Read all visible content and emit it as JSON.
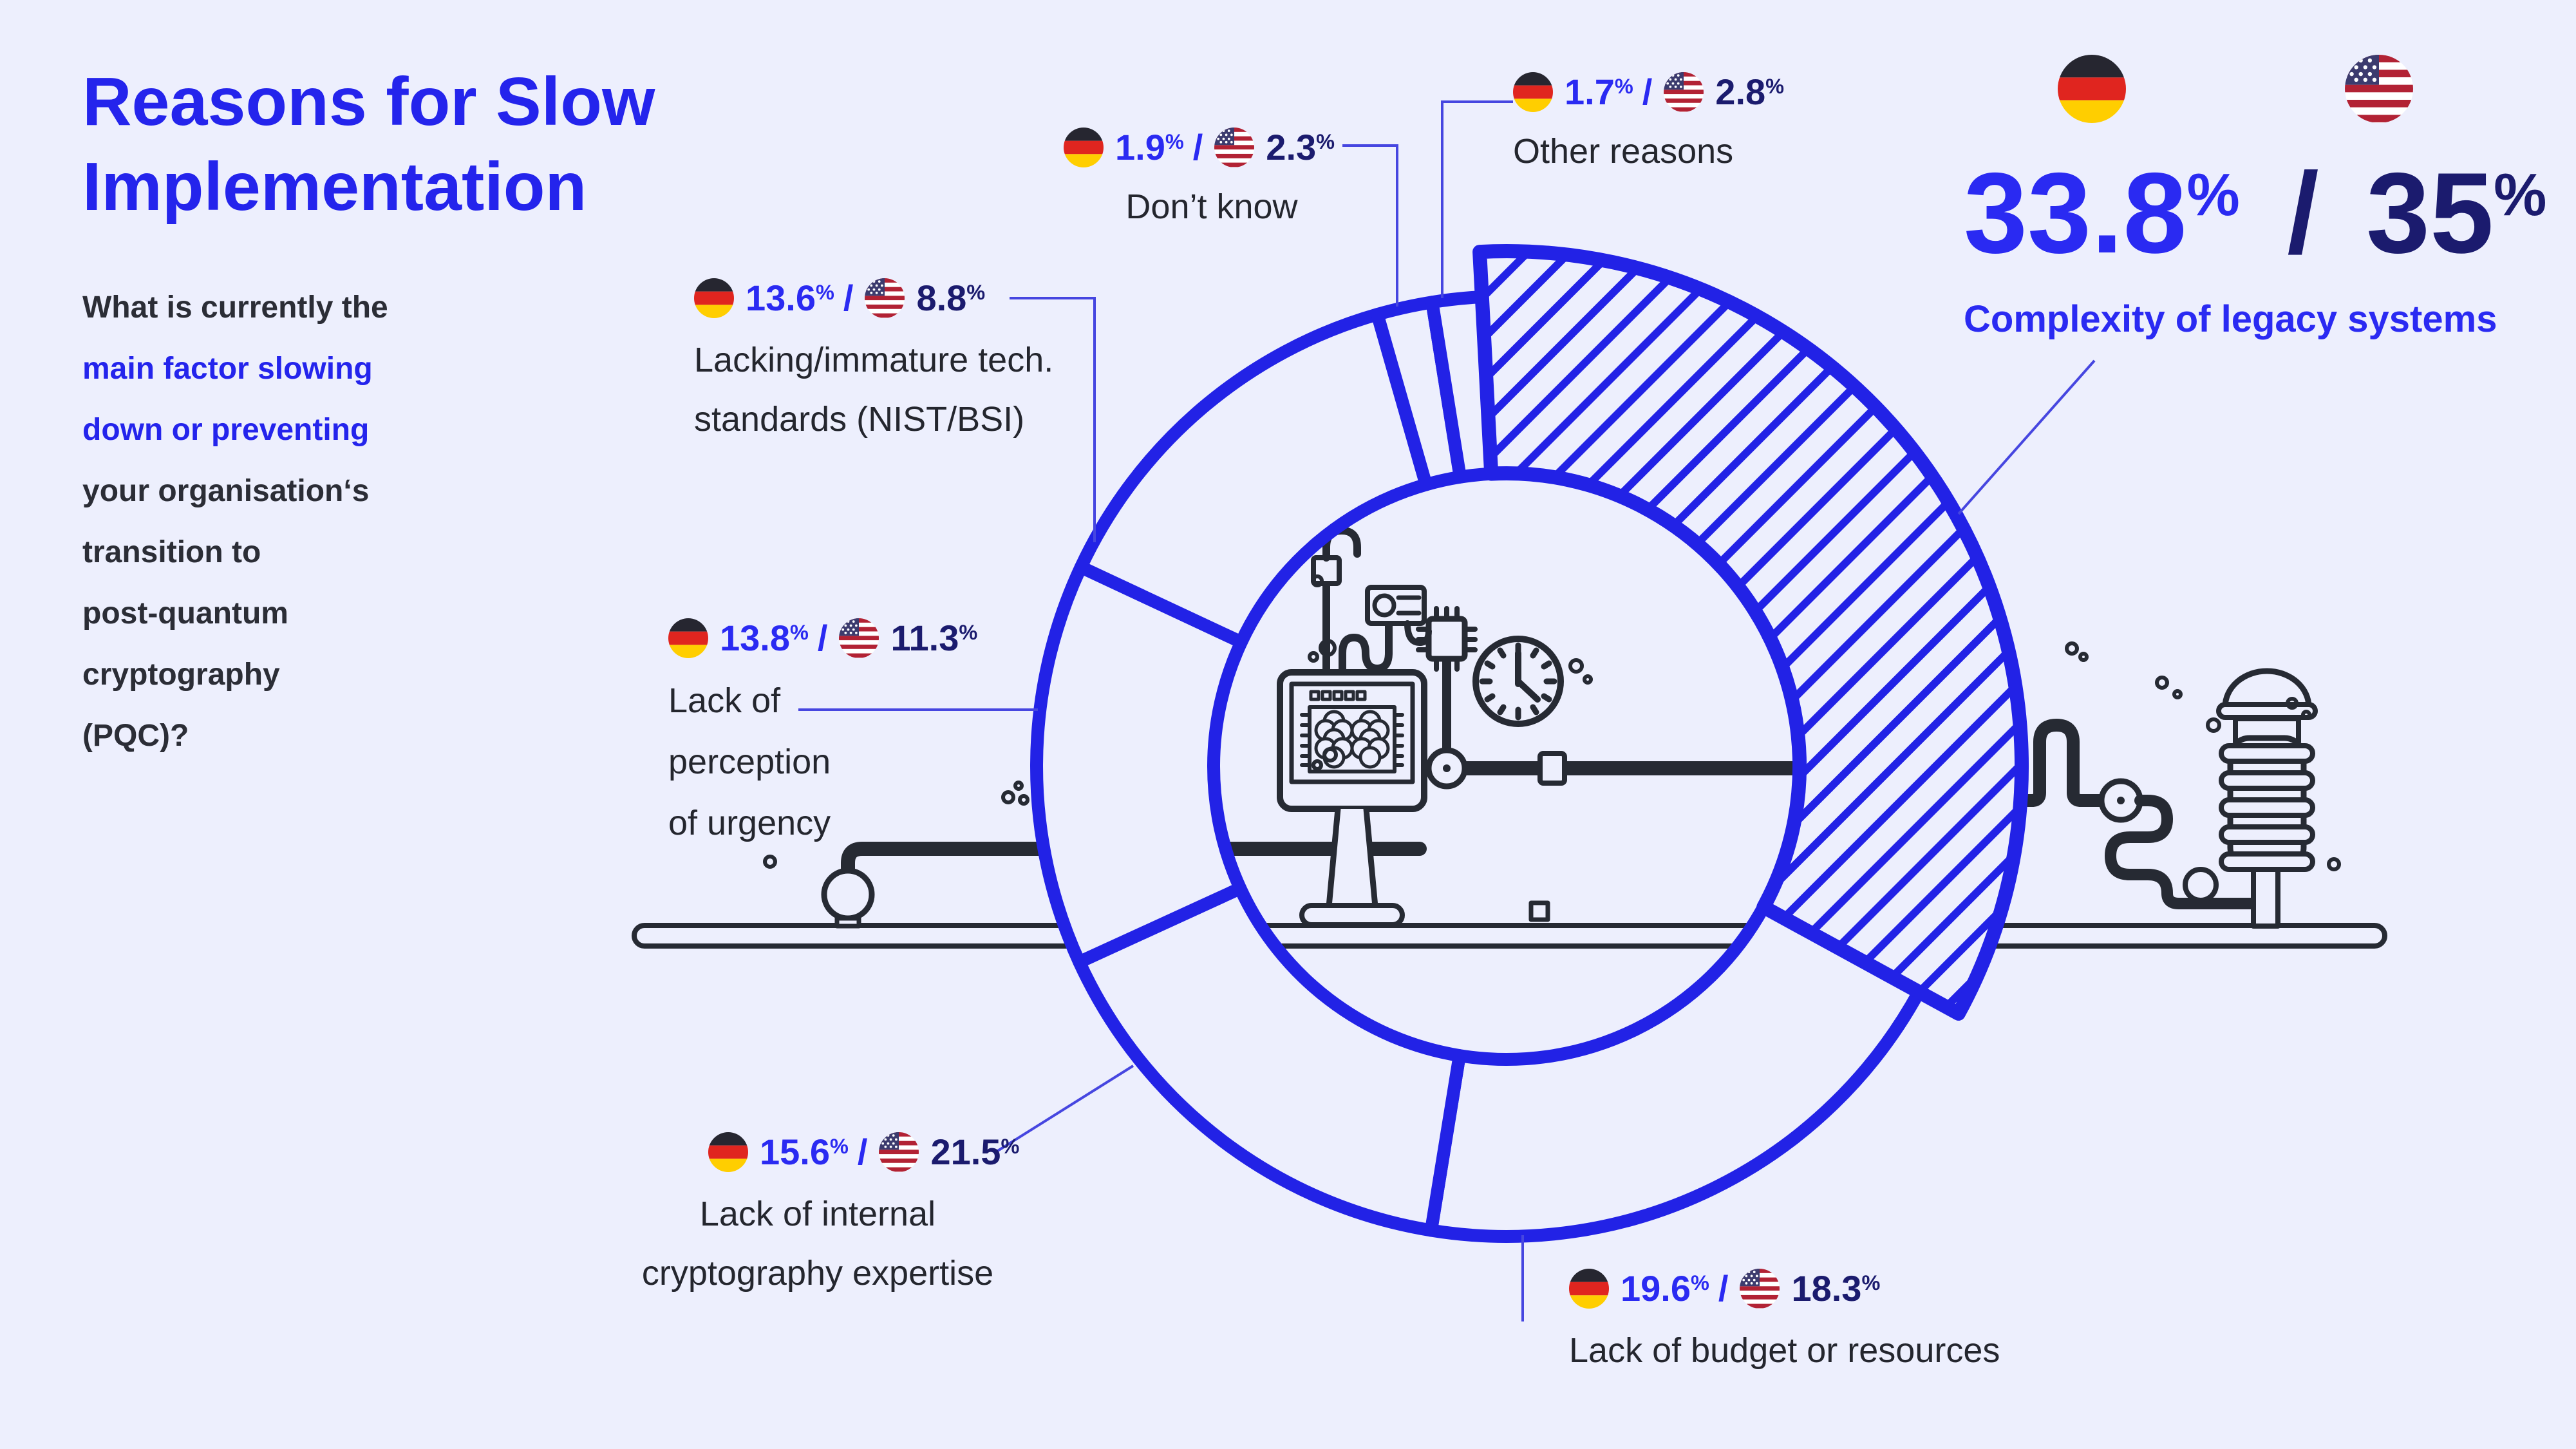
{
  "title": {
    "line1": "Reasons for Slow",
    "line2": "Implementation"
  },
  "question": {
    "lines": [
      "What is currently the",
      "main factor slowing",
      "down or preventing",
      "your organisation‘s",
      "transition to",
      "post-quantum",
      "cryptography",
      "(PQC)?"
    ]
  },
  "separator": "/",
  "unit": "%",
  "colors": {
    "accent_blue": "#2222e6",
    "bright_blue": "#2a2af2",
    "navy": "#1b1b6e",
    "background": "#edeffd",
    "ink": "#262a33"
  },
  "flags": {
    "de": "Germany",
    "us": "USA"
  },
  "labels": {
    "complexity": {
      "de": "33.8",
      "us": "35",
      "name": "Complexity of legacy systems"
    },
    "budget": {
      "de": "19.6",
      "us": "18.3",
      "name": "Lack of budget or resources"
    },
    "expertise": {
      "de": "15.6",
      "us": "21.5",
      "name_lines": [
        "Lack of internal",
        "cryptography expertise"
      ]
    },
    "urgency": {
      "de": "13.8",
      "us": "11.3",
      "name_lines": [
        "Lack of",
        "perception",
        "of urgency"
      ]
    },
    "tech": {
      "de": "13.6",
      "us": "8.8",
      "name_lines": [
        "Lacking/immature tech.",
        "standards (NIST/BSI)"
      ]
    },
    "dontknow": {
      "de": "1.9",
      "us": "2.3",
      "name": "Don’t know"
    },
    "other": {
      "de": "1.7",
      "us": "2.8",
      "name": "Other reasons"
    }
  },
  "chart_data": {
    "type": "donut",
    "title": "Reasons for Slow Implementation",
    "unit": "%",
    "direction": "clockwise",
    "start_angle_deg": -3,
    "sized_by": "Germany",
    "highlighted_segment": "Complexity of legacy systems",
    "legend_position": "callout-labels",
    "categories": [
      "Complexity of legacy systems",
      "Lack of budget or resources",
      "Lack of internal cryptography expertise",
      "Lack of perception of urgency",
      "Lacking/immature tech. standards (NIST/BSI)",
      "Don’t know",
      "Other reasons"
    ],
    "series": [
      {
        "name": "Germany",
        "values": [
          33.8,
          19.6,
          15.6,
          13.8,
          13.6,
          1.9,
          1.7
        ]
      },
      {
        "name": "USA",
        "values": [
          35,
          18.3,
          21.5,
          11.3,
          8.8,
          2.3,
          2.8
        ]
      }
    ],
    "segments": [
      {
        "key": "complexity",
        "label": "Complexity of legacy systems",
        "value": 33.8,
        "us_value": 35,
        "hatched": true
      },
      {
        "key": "budget",
        "label": "Lack of budget or resources",
        "value": 19.6,
        "us_value": 18.3,
        "hatched": false
      },
      {
        "key": "expertise",
        "label": "Lack of internal cryptography expertise",
        "value": 15.6,
        "us_value": 21.5,
        "hatched": false
      },
      {
        "key": "urgency",
        "label": "Lack of perception of urgency",
        "value": 13.8,
        "us_value": 11.3,
        "hatched": false
      },
      {
        "key": "tech",
        "label": "Lacking/immature tech. standards (NIST/BSI)",
        "value": 13.6,
        "us_value": 8.8,
        "hatched": false
      },
      {
        "key": "dontknow",
        "label": "Don’t know",
        "value": 1.9,
        "us_value": 2.3,
        "hatched": false
      },
      {
        "key": "other",
        "label": "Other reasons",
        "value": 1.7,
        "us_value": 2.8,
        "hatched": false
      }
    ]
  }
}
